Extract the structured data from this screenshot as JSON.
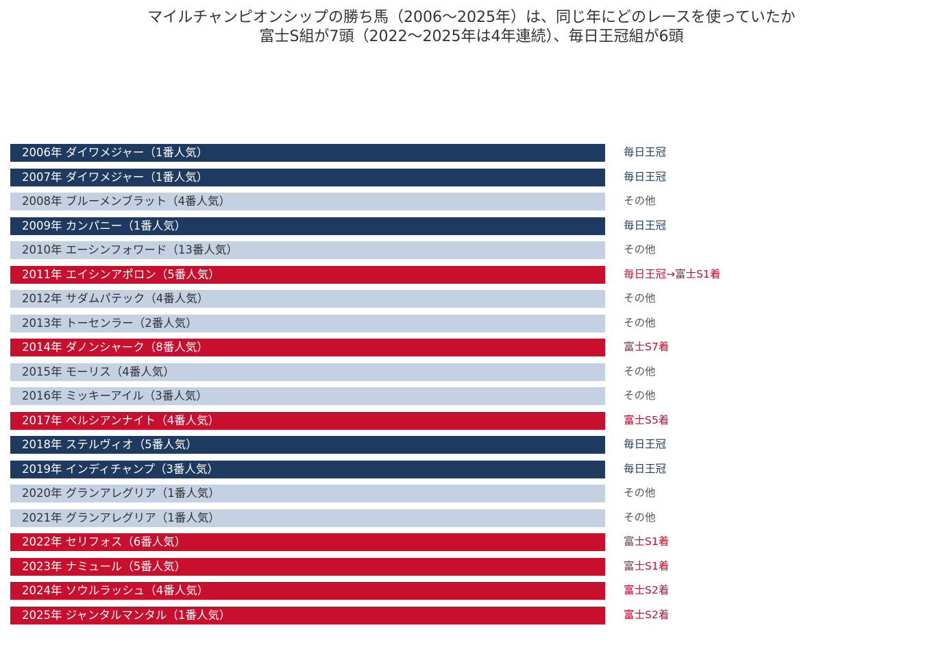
{
  "chart_data": {
    "type": "table",
    "title": "マイルチャンピオンシップの勝ち馬（2006〜2025年）は、同じ年にどのレースを使っていたか",
    "subtitle": "富士S組が7頭（2022〜2025年は4年連続）、毎日王冠組が6頭",
    "colors": {
      "mainichi": "#1f3a60",
      "other": "#c3d1e2",
      "fuji": "#c8102e",
      "text_on_dark": "#ffffff",
      "text_on_light": "#333333",
      "side_mainichi": "#1f3a60",
      "side_other": "#555555",
      "side_fuji": "#c8102e"
    },
    "rows": [
      {
        "label": "2006年  ダイワメジャー（1番人気）",
        "route": "毎日王冠",
        "group": "mainichi"
      },
      {
        "label": "2007年  ダイワメジャー（1番人気）",
        "route": "毎日王冠",
        "group": "mainichi"
      },
      {
        "label": "2008年  ブルーメンブラット（4番人気）",
        "route": "その他",
        "group": "other"
      },
      {
        "label": "2009年  カンパニー（1番人気）",
        "route": "毎日王冠",
        "group": "mainichi"
      },
      {
        "label": "2010年  エーシンフォワード（13番人気）",
        "route": "その他",
        "group": "other"
      },
      {
        "label": "2011年  エイシンアポロン（5番人気）",
        "route": "毎日王冠→富士S1着",
        "group": "fuji"
      },
      {
        "label": "2012年  サダムパテック（4番人気）",
        "route": "その他",
        "group": "other"
      },
      {
        "label": "2013年  トーセンラー（2番人気）",
        "route": "その他",
        "group": "other"
      },
      {
        "label": "2014年  ダノンシャーク（8番人気）",
        "route": "富士S7着",
        "group": "fuji"
      },
      {
        "label": "2015年  モーリス（4番人気）",
        "route": "その他",
        "group": "other"
      },
      {
        "label": "2016年  ミッキーアイル（3番人気）",
        "route": "その他",
        "group": "other"
      },
      {
        "label": "2017年  ペルシアンナイト（4番人気）",
        "route": "富士S5着",
        "group": "fuji"
      },
      {
        "label": "2018年  ステルヴィオ（5番人気）",
        "route": "毎日王冠",
        "group": "mainichi"
      },
      {
        "label": "2019年  インディチャンプ（3番人気）",
        "route": "毎日王冠",
        "group": "mainichi"
      },
      {
        "label": "2020年  グランアレグリア（1番人気）",
        "route": "その他",
        "group": "other"
      },
      {
        "label": "2021年  グランアレグリア（1番人気）",
        "route": "その他",
        "group": "other"
      },
      {
        "label": "2022年  セリフォス（6番人気）",
        "route": "富士S1着",
        "group": "fuji"
      },
      {
        "label": "2023年  ナミュール（5番人気）",
        "route": "富士S1着",
        "group": "fuji"
      },
      {
        "label": "2024年  ソウルラッシュ（4番人気）",
        "route": "富士S2着",
        "group": "fuji"
      },
      {
        "label": "2025年  ジャンタルマンタル（1番人気）",
        "route": "富士S2着",
        "group": "fuji"
      }
    ]
  }
}
